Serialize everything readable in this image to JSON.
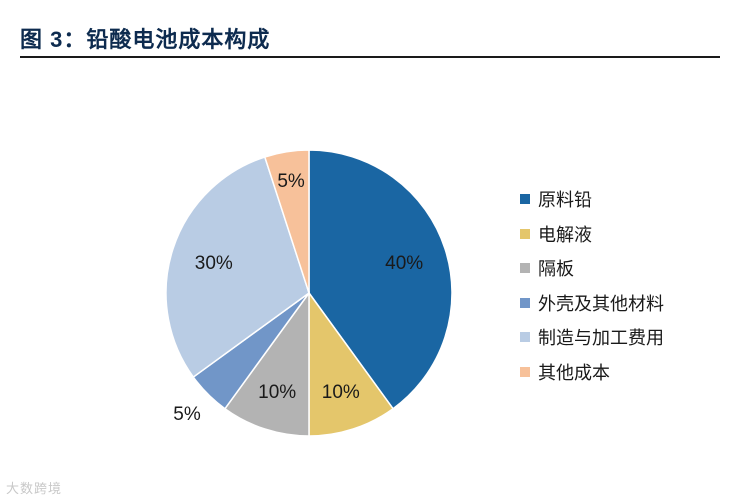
{
  "header": {
    "title": "图 3：铅酸电池成本构成"
  },
  "chart_data": {
    "type": "pie",
    "title": "",
    "start_angle_deg": 90,
    "direction": "clockwise",
    "slices": [
      {
        "name": "原料铅",
        "value": 40,
        "label": "40%",
        "color": "#1a66a3"
      },
      {
        "name": "电解液",
        "value": 10,
        "label": "10%",
        "color": "#e4c66b"
      },
      {
        "name": "隔板",
        "value": 10,
        "label": "10%",
        "color": "#b3b3b3"
      },
      {
        "name": "外壳及其他材料",
        "value": 5,
        "label": "5%",
        "color": "#7196c8"
      },
      {
        "name": "制造与加工费用",
        "value": 30,
        "label": "30%",
        "color": "#b9cce4"
      },
      {
        "name": "其他成本",
        "value": 5,
        "label": "5%",
        "color": "#f7c19a"
      }
    ],
    "legend_position": "right"
  },
  "watermark": {
    "text": "大数跨境"
  }
}
